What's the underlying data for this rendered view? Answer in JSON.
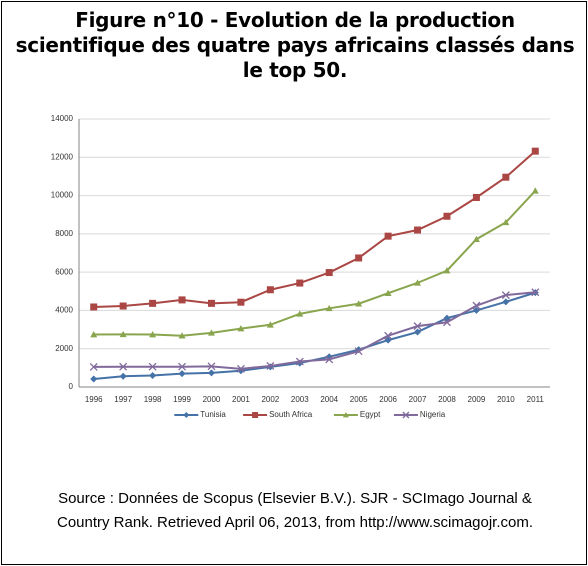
{
  "chart_data": {
    "type": "line",
    "title": "Figure n°10 - Evolution de la production scientifique des quatre pays africains classés dans le top 50.",
    "source": "Source : Données de Scopus (Elsevier B.V.). SJR - SCImago Journal & Country Rank. Retrieved April 06, 2013, from http://www.scimagojr.com.",
    "categories": [
      "1996",
      "1997",
      "1998",
      "1999",
      "2000",
      "2001",
      "2002",
      "2003",
      "2004",
      "2005",
      "2006",
      "2007",
      "2008",
      "2009",
      "2010",
      "2011"
    ],
    "series": [
      {
        "name": "Tunisia",
        "color": "#4572a7",
        "marker": "diamond",
        "values": [
          420,
          560,
          600,
          700,
          740,
          850,
          1050,
          1250,
          1580,
          1950,
          2450,
          2870,
          3600,
          4000,
          4450,
          4930
        ]
      },
      {
        "name": "South Africa",
        "color": "#aa4643",
        "marker": "square",
        "values": [
          4180,
          4230,
          4370,
          4550,
          4370,
          4430,
          5080,
          5430,
          5980,
          6740,
          7880,
          8200,
          8920,
          9900,
          10960,
          12320
        ]
      },
      {
        "name": "Egypt",
        "color": "#89a54e",
        "marker": "triangle",
        "values": [
          2740,
          2750,
          2740,
          2680,
          2830,
          3050,
          3250,
          3820,
          4110,
          4350,
          4900,
          5440,
          6080,
          7720,
          8600,
          10250
        ]
      },
      {
        "name": "Nigeria",
        "color": "#80699b",
        "marker": "x",
        "values": [
          1050,
          1060,
          1060,
          1060,
          1080,
          950,
          1100,
          1330,
          1440,
          1870,
          2680,
          3180,
          3380,
          4250,
          4800,
          4950
        ]
      }
    ],
    "ylim": [
      0,
      14000
    ],
    "yticks": [
      0,
      2000,
      4000,
      6000,
      8000,
      10000,
      12000,
      14000
    ],
    "grid": true,
    "legend": "bottom"
  }
}
